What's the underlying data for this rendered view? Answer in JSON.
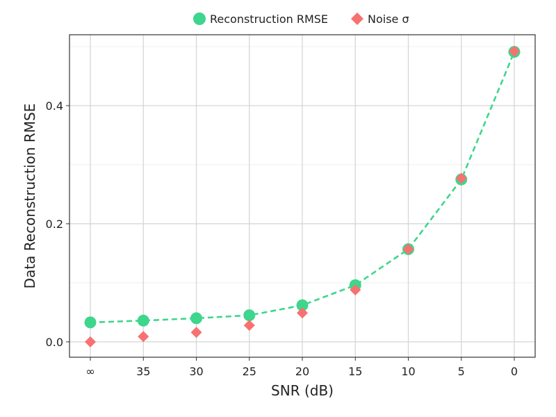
{
  "chart_data": {
    "type": "line",
    "xlabel": "SNR (dB)",
    "ylabel": "Data Reconstruction RMSE",
    "categories": [
      "∞",
      "35",
      "30",
      "25",
      "20",
      "15",
      "10",
      "5",
      "0"
    ],
    "y_ticks": [
      0.0,
      0.2,
      0.4
    ],
    "y_tick_labels": [
      "0.0",
      "0.2",
      "0.4"
    ],
    "ylim": [
      -0.026,
      0.52
    ],
    "grid": true,
    "legend_position": "top",
    "series": [
      {
        "name": "Reconstruction RMSE",
        "marker": "circle",
        "line": "dashed",
        "color": "#3dd68c",
        "values": [
          0.033,
          0.036,
          0.04,
          0.045,
          0.062,
          0.096,
          0.157,
          0.275,
          0.491
        ]
      },
      {
        "name": "Noise σ",
        "marker": "diamond",
        "line": "none",
        "color": "#f87171",
        "values": [
          0.0,
          0.009,
          0.016,
          0.028,
          0.049,
          0.088,
          0.157,
          0.277,
          0.492
        ]
      }
    ]
  }
}
